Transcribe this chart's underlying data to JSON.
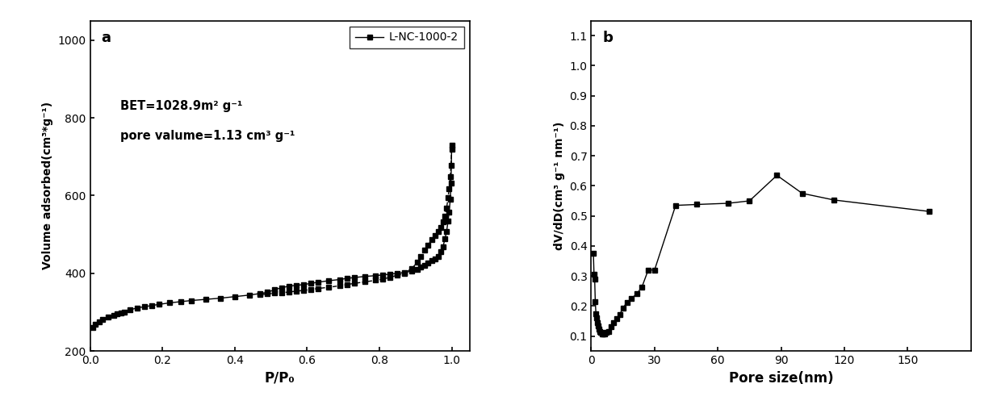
{
  "plot_a": {
    "label": "L-NC-1000-2",
    "xlabel": "P/P₀",
    "ylabel": "Volume adsorbed(cm³*g⁻¹)",
    "annotation_line1": "BET=1028.9m² g⁻¹",
    "annotation_line2": "pore valume=1.13 cm³ g⁻¹",
    "xlim": [
      0.0,
      1.05
    ],
    "ylim": [
      200,
      1050
    ],
    "yticks": [
      200,
      400,
      600,
      800,
      1000
    ],
    "xticks": [
      0.0,
      0.2,
      0.4,
      0.6,
      0.8,
      1.0
    ],
    "panel_label": "a",
    "x_ads": [
      0.008,
      0.015,
      0.025,
      0.035,
      0.05,
      0.065,
      0.075,
      0.085,
      0.095,
      0.11,
      0.13,
      0.15,
      0.17,
      0.19,
      0.22,
      0.25,
      0.28,
      0.32,
      0.36,
      0.4,
      0.44,
      0.47,
      0.49,
      0.51,
      0.53,
      0.55,
      0.57,
      0.59,
      0.61,
      0.63,
      0.66,
      0.69,
      0.71,
      0.73,
      0.76,
      0.79,
      0.81,
      0.83,
      0.85,
      0.87,
      0.89,
      0.905,
      0.915,
      0.925,
      0.935,
      0.945,
      0.955,
      0.963,
      0.97,
      0.976,
      0.981,
      0.986,
      0.99,
      0.993,
      0.996,
      0.998,
      1.0
    ],
    "y_ads": [
      260,
      268,
      275,
      281,
      287,
      292,
      295,
      298,
      301,
      306,
      311,
      314,
      317,
      320,
      324,
      327,
      330,
      333,
      336,
      340,
      344,
      348,
      351,
      358,
      363,
      367,
      369,
      371,
      374,
      377,
      381,
      384,
      387,
      389,
      392,
      394,
      396,
      398,
      400,
      402,
      406,
      410,
      416,
      421,
      427,
      432,
      438,
      443,
      455,
      468,
      488,
      508,
      535,
      558,
      590,
      632,
      730
    ],
    "x_des": [
      1.0,
      0.998,
      0.996,
      0.993,
      0.99,
      0.986,
      0.981,
      0.976,
      0.97,
      0.963,
      0.955,
      0.945,
      0.935,
      0.925,
      0.915,
      0.905,
      0.89,
      0.87,
      0.85,
      0.83,
      0.81,
      0.79,
      0.76,
      0.73,
      0.71,
      0.69,
      0.66,
      0.63,
      0.61,
      0.59,
      0.57,
      0.55,
      0.53,
      0.51,
      0.49,
      0.47
    ],
    "y_des": [
      720,
      678,
      648,
      618,
      595,
      568,
      548,
      532,
      518,
      507,
      497,
      487,
      473,
      459,
      443,
      428,
      413,
      400,
      395,
      390,
      385,
      382,
      378,
      374,
      371,
      368,
      364,
      361,
      358,
      356,
      354,
      352,
      350,
      349,
      347,
      345
    ]
  },
  "plot_b": {
    "xlabel": "Pore size(nm)",
    "ylabel": "dV/dD(cm³ g⁻¹ nm⁻¹)",
    "xlim": [
      0,
      180
    ],
    "ylim": [
      0.05,
      1.15
    ],
    "yticks": [
      0.1,
      0.2,
      0.3,
      0.4,
      0.5,
      0.6,
      0.7,
      0.8,
      0.9,
      1.0,
      1.1
    ],
    "xticks": [
      0,
      30,
      60,
      90,
      120,
      150
    ],
    "panel_label": "b",
    "x": [
      1.0,
      1.3,
      1.6,
      1.9,
      2.2,
      2.5,
      2.8,
      3.2,
      3.6,
      4.1,
      4.6,
      5.1,
      5.7,
      6.3,
      7.2,
      8.2,
      9.3,
      10.5,
      12.0,
      13.5,
      15.0,
      17.0,
      19.0,
      21.5,
      24.0,
      27.0,
      30.0,
      40.0,
      50.0,
      65.0,
      75.0,
      88.0,
      100.0,
      115.0,
      160.0
    ],
    "y": [
      0.375,
      0.305,
      0.29,
      0.215,
      0.175,
      0.16,
      0.145,
      0.135,
      0.123,
      0.114,
      0.111,
      0.108,
      0.107,
      0.108,
      0.111,
      0.115,
      0.13,
      0.145,
      0.158,
      0.172,
      0.193,
      0.213,
      0.225,
      0.24,
      0.263,
      0.32,
      0.32,
      0.535,
      0.538,
      0.542,
      0.55,
      0.635,
      0.575,
      0.553,
      0.515
    ]
  }
}
